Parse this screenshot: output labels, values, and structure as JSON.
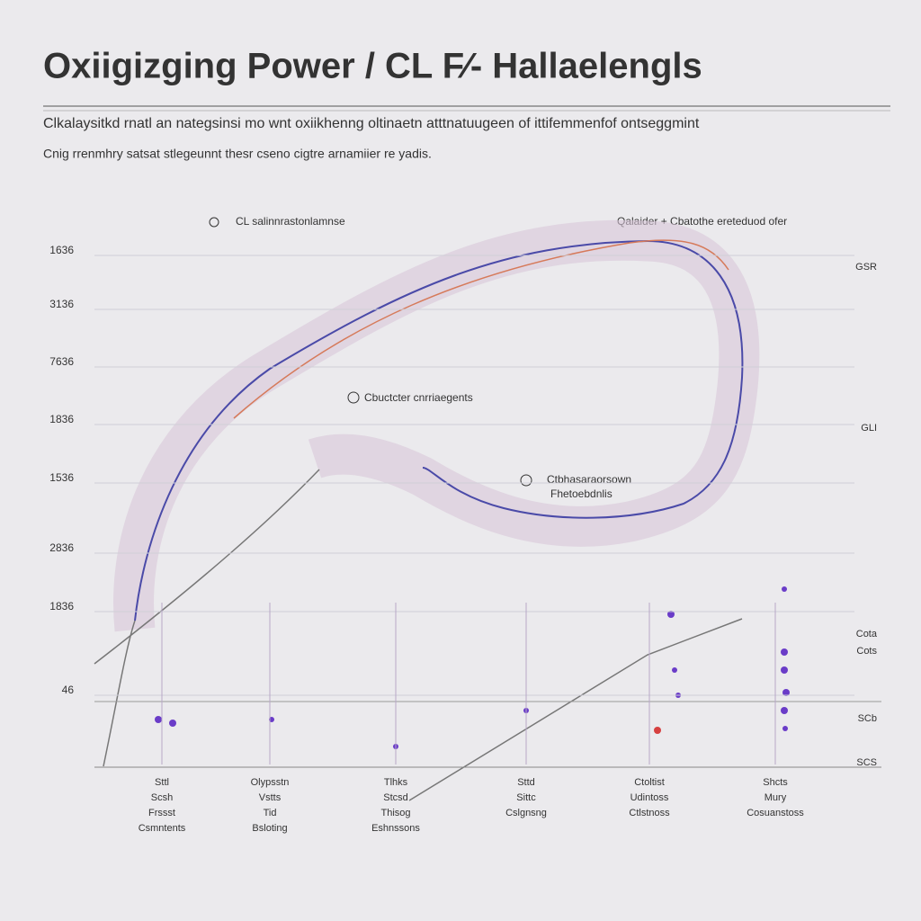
{
  "header": {
    "title": "Oxiigizging Power / CL F⁄- Hallaelengls",
    "subtitle": [
      "Clkalaysitkd rnatl an nategsinsi mo wnt oxiikhenng oltinaetn atttnatuugeen of ittifemmenfof ontseggmint",
      "Cnig rrenmhry satsat stlegeunnt thesr cseno cigtre arnamiier re yadis."
    ]
  },
  "legend": [
    "CL salinnrastonlamnse",
    "Qalaider + Cbatothe ereteduod ofer"
  ],
  "annotations": [
    "Cbuctcter cnrriaegents",
    "Ctbhasaraorsown",
    "Fhetoebdnlis"
  ],
  "y_labels": [
    "1636",
    "3136",
    "7636",
    "1836",
    "1536",
    "2836",
    "1836",
    "46"
  ],
  "right_labels": [
    "GSR",
    "GLI",
    "Cota",
    "Cots",
    "SCb",
    "SCS"
  ],
  "columns": [
    [
      "Sttl",
      "Scsh",
      "Frssst",
      "Csmntents"
    ],
    [
      "Olypsstn",
      "Vstts",
      "Tid",
      "Bsloting"
    ],
    [
      "Tlhks",
      "Stcsd",
      "Thisog",
      "Eshnssons"
    ],
    [
      "Sttd",
      "Sittc",
      "Cslgnsng"
    ],
    [
      "Ctoltist",
      "Udintoss",
      "Ctlstnoss"
    ],
    [
      "Shcts",
      "Mury",
      "Cosuanstoss"
    ]
  ]
}
